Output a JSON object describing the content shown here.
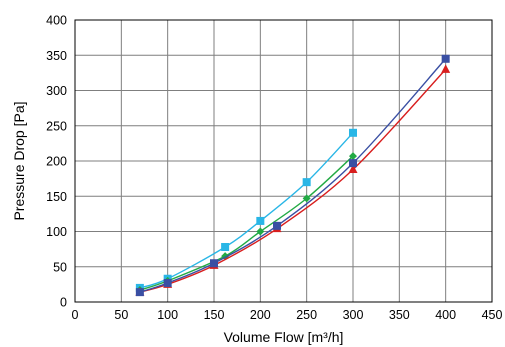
{
  "chart_data": {
    "type": "line",
    "title": "",
    "xlabel": "Volume Flow [m³/h]",
    "ylabel": "Pressure Drop [Pa]",
    "xlim": [
      0,
      450
    ],
    "ylim": [
      0,
      400
    ],
    "xticks": [
      0,
      50,
      100,
      150,
      200,
      250,
      300,
      350,
      400,
      450
    ],
    "yticks": [
      0,
      50,
      100,
      150,
      200,
      250,
      300,
      350,
      400
    ],
    "grid": true,
    "legend": "none",
    "series": [
      {
        "color": "#29b6e6",
        "marker": "square",
        "points": [
          [
            70,
            20
          ],
          [
            100,
            33
          ],
          [
            162,
            78
          ],
          [
            200,
            115
          ],
          [
            250,
            170
          ],
          [
            300,
            240
          ]
        ]
      },
      {
        "color": "#22aa44",
        "marker": "diamond",
        "points": [
          [
            70,
            17
          ],
          [
            100,
            30
          ],
          [
            162,
            65
          ],
          [
            200,
            100
          ],
          [
            250,
            147
          ],
          [
            300,
            207
          ]
        ]
      },
      {
        "color": "#d81e1e",
        "marker": "triangle",
        "points": [
          [
            70,
            14
          ],
          [
            100,
            25
          ],
          [
            150,
            52
          ],
          [
            218,
            104
          ],
          [
            300,
            188
          ],
          [
            400,
            330
          ]
        ]
      },
      {
        "color": "#3a4fa3",
        "marker": "square",
        "points": [
          [
            70,
            14
          ],
          [
            100,
            27
          ],
          [
            150,
            55
          ],
          [
            218,
            108
          ],
          [
            300,
            197
          ],
          [
            400,
            345
          ]
        ]
      }
    ]
  }
}
